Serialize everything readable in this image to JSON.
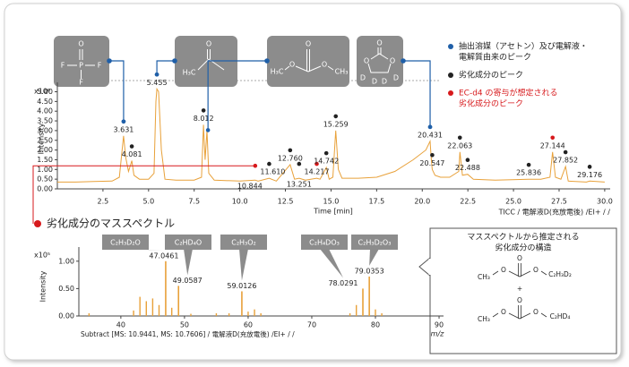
{
  "chart_data": [
    {
      "type": "line",
      "y_multiplier": "x10⁶",
      "ylabel": "Intensity",
      "xlabel": "Time [min]",
      "footer": "TICC / 電解液D(充放電後) /EI+ / /",
      "xlim": [
        0,
        30.3
      ],
      "xticks": [
        2.5,
        {
          "value": 5,
          "label": "5.0"
        },
        7.5,
        {
          "value": 10,
          "label": "10.0"
        },
        12.5,
        {
          "value": 15,
          "label": "15.0"
        },
        17.5,
        {
          "value": 20,
          "label": "20.0"
        },
        22.5,
        {
          "value": 25,
          "label": "25.0"
        },
        27.5,
        {
          "value": 30,
          "label": "30.0"
        }
      ],
      "ylim": [
        0,
        5.3
      ],
      "yticks": [
        {
          "value": 0,
          "label": "0.00"
        },
        {
          "value": 0.5,
          "label": "0.50"
        },
        {
          "value": 1,
          "label": "1.00"
        },
        {
          "value": 1.5,
          "label": "1.50"
        },
        {
          "value": 2,
          "label": "2.00"
        },
        {
          "value": 2.5,
          "label": "2.50"
        },
        {
          "value": 3,
          "label": "3.00"
        },
        {
          "value": 3.5,
          "label": "3.50"
        },
        {
          "value": 4,
          "label": "4.00"
        },
        {
          "value": 4.5,
          "label": "4.50"
        },
        {
          "value": 5,
          "label": "5.00"
        }
      ],
      "series": [
        {
          "color": "#e8a13a",
          "x": [
            0,
            1,
            2,
            3,
            3.4,
            3.55,
            3.631,
            3.75,
            3.9,
            4.0,
            4.081,
            4.2,
            4.5,
            5,
            5.3,
            5.4,
            5.455,
            5.55,
            5.7,
            5.9,
            6.5,
            7.5,
            7.9,
            8.012,
            8.1,
            8.2,
            8.3,
            8.6,
            10,
            10.844,
            11,
            11.61,
            12,
            12.76,
            13,
            13.251,
            13.6,
            14.217,
            14.4,
            14.742,
            14.9,
            15.1,
            15.259,
            15.4,
            15.6,
            16.5,
            17.5,
            18.5,
            19.5,
            20.2,
            20.431,
            20.5,
            20.547,
            20.7,
            21,
            21.5,
            22,
            22.063,
            22.2,
            22.488,
            22.8,
            24,
            25.836,
            26.5,
            27,
            27.144,
            27.3,
            27.6,
            27.852,
            28,
            29,
            29.176,
            30
          ],
          "values": [
            0.35,
            0.35,
            0.38,
            0.4,
            0.6,
            2.0,
            2.73,
            1.6,
            0.9,
            1.2,
            1.45,
            0.7,
            0.5,
            0.5,
            0.8,
            4.5,
            5.15,
            5.0,
            2.0,
            0.5,
            0.45,
            0.45,
            0.6,
            3.3,
            1.5,
            3.0,
            0.8,
            0.45,
            0.4,
            0.45,
            0.4,
            0.55,
            0.4,
            1.25,
            0.5,
            0.55,
            0.45,
            0.55,
            0.5,
            1.1,
            0.5,
            0.6,
            3.0,
            1.0,
            0.55,
            0.55,
            0.6,
            0.9,
            1.5,
            2.0,
            2.45,
            1.5,
            1.0,
            0.7,
            0.6,
            0.6,
            0.9,
            1.9,
            0.7,
            0.75,
            0.5,
            0.45,
            0.5,
            0.5,
            0.6,
            1.9,
            0.6,
            0.5,
            1.15,
            0.4,
            0.35,
            0.4,
            0.35
          ]
        }
      ],
      "peaks": {
        "x": [
          3.631,
          4.081,
          5.455,
          8.012,
          10.844,
          {
            "value": 11.61,
            "label": "11.610"
          },
          {
            "value": 12.76,
            "label": "12.760"
          },
          13.251,
          14.217,
          14.742,
          15.259,
          20.431,
          20.547,
          22.063,
          22.488,
          25.836,
          27.144,
          27.852,
          29.176
        ],
        "values": [
          2.73,
          1.45,
          5.15,
          3.3,
          0.45,
          0.55,
          1.25,
          0.55,
          0.55,
          1.1,
          3.0,
          2.45,
          1.0,
          1.9,
          0.75,
          0.5,
          1.9,
          1.15,
          0.4
        ],
        "colors": [
          "#1f5fa8",
          "#222222",
          "#1f5fa8",
          "#222222",
          "#d7191c",
          "#222222",
          "#222222",
          "#222222",
          "#d7191c",
          "#222222",
          "#222222",
          "#1f5fa8",
          "#222222",
          "#222222",
          "#222222",
          "#222222",
          "#d7191c",
          "#222222",
          "#222222"
        ]
      },
      "structures": [
        {
          "atoms": [
            "O",
            "F",
            "P",
            "F",
            "F"
          ]
        },
        {
          "atoms": [
            "O",
            "H₃C"
          ]
        },
        {
          "atoms": [
            "O",
            "H₃C",
            "O",
            "O",
            "CH₃"
          ]
        },
        {
          "atoms": [
            "O",
            "O",
            "O",
            "D",
            "D",
            "D",
            "D"
          ]
        }
      ],
      "legend": [
        {
          "color": "#1f5fa8",
          "text_color": "#222222",
          "lines": [
            "抽出溶媒（アセトン）及び電解液・",
            "電解質由来のピーク"
          ]
        },
        {
          "color": "#222222",
          "text_color": "#222222",
          "lines": [
            "劣化成分のピーク"
          ]
        },
        {
          "color": "#d7191c",
          "text_color": "#d7191c",
          "lines": [
            "EC-d4 の寄与が想定される",
            "劣化成分のピーク"
          ]
        }
      ]
    },
    {
      "type": "bar",
      "title": "劣化成分のマススペクトル",
      "y_multiplier": "x10⁵",
      "ylabel": "Intensity",
      "xlabel": "m/z",
      "footer": "Subtract [MS: 10.9441, MS: 10.7606] / 電解液D(充放電後) /EI+ / /",
      "xlim": [
        33.4,
        90.7
      ],
      "xticks": [
        40,
        50,
        60,
        70,
        80,
        90
      ],
      "ylim": [
        0,
        1.16
      ],
      "yticks": [
        {
          "value": 0,
          "label": "0.00"
        },
        {
          "value": 0.5,
          "label": "0.50"
        },
        {
          "value": 1,
          "label": "1.00"
        }
      ],
      "color": "#e8a13a",
      "x": [
        35,
        42,
        43,
        44,
        45,
        46,
        48,
        51,
        55,
        57,
        60,
        61,
        62,
        76,
        77,
        80,
        81
      ],
      "values": [
        0.05,
        0.1,
        0.35,
        0.27,
        0.32,
        0.2,
        0.15,
        0.04,
        0.05,
        0.05,
        0.08,
        0.12,
        0.05,
        0.05,
        0.2,
        0.12,
        0.05
      ],
      "peaks": {
        "x": [
          47.0461,
          49.0587,
          59.0126,
          78.0291,
          79.0353
        ],
        "values": [
          1.0,
          0.55,
          0.45,
          0.5,
          0.72
        ],
        "formulas": [
          "C₂H₃D₂O",
          "C₂HD₄O",
          "C₂H₃O₂",
          "C₂H₄DO₃",
          "C₂H₃D₂O₃"
        ]
      },
      "note": {
        "title_lines": [
          "マススペクトルから推定される",
          "劣化成分の構造"
        ],
        "atoms": [
          "CH₃",
          "O",
          "O",
          "O",
          "C₂H₃D₂",
          "+",
          "CH₃",
          "O",
          "O",
          "O",
          "C₂HD₄"
        ]
      }
    }
  ]
}
